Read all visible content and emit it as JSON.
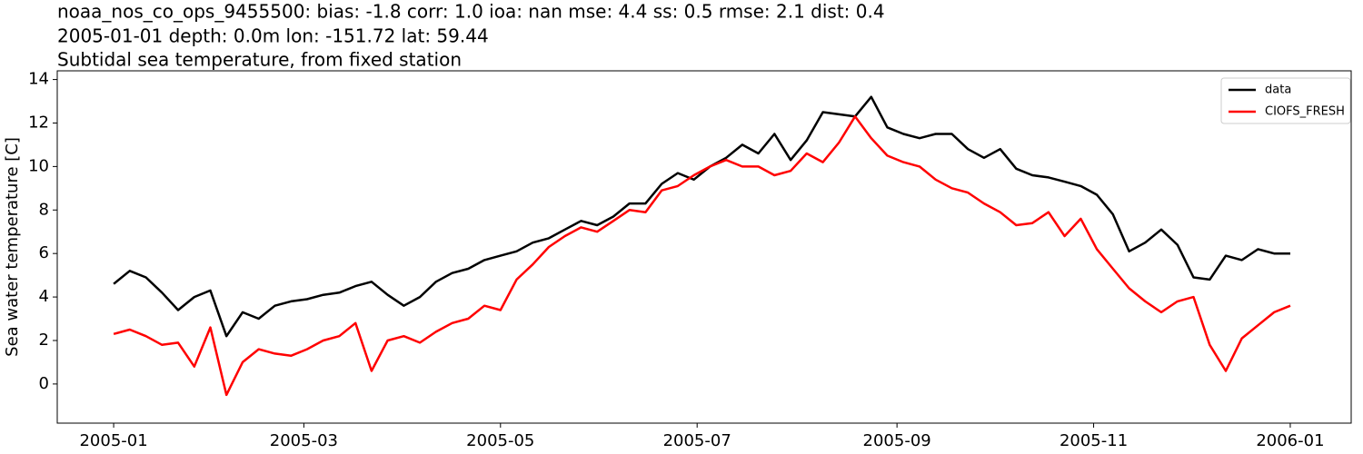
{
  "chart_data": {
    "type": "line",
    "title": "noaa_nos_co_ops_9455500: bias: -1.8  corr: 1.0  ioa: nan  mse: 4.4  ss: 0.5  rmse: 2.1  dist: 0.4",
    "subtitle": "2005-01-01 depth: 0.0m lon: -151.72 lat: 59.44",
    "description": "Subtidal sea temperature, from fixed station",
    "ylabel": "Sea water temperature [C]",
    "x": [
      0,
      5,
      10,
      15,
      20,
      25,
      30,
      35,
      40,
      45,
      50,
      55,
      60,
      65,
      70,
      75,
      80,
      85,
      90,
      95,
      100,
      105,
      110,
      115,
      120,
      125,
      130,
      135,
      140,
      145,
      150,
      155,
      160,
      165,
      170,
      175,
      180,
      185,
      190,
      195,
      200,
      205,
      210,
      215,
      220,
      225,
      230,
      235,
      240,
      245,
      250,
      255,
      260,
      265,
      270,
      275,
      280,
      285,
      290,
      295,
      300,
      305,
      310,
      315,
      320,
      325,
      330,
      335,
      340,
      345,
      350,
      355,
      360,
      365
    ],
    "series": [
      {
        "name": "data",
        "color": "#000000",
        "values": [
          4.6,
          5.2,
          4.9,
          4.2,
          3.4,
          4.0,
          4.3,
          2.2,
          3.3,
          3.0,
          3.6,
          3.8,
          3.9,
          4.1,
          4.2,
          4.5,
          4.7,
          4.1,
          3.6,
          4.0,
          4.7,
          5.1,
          5.3,
          5.7,
          5.9,
          6.1,
          6.5,
          6.7,
          7.1,
          7.5,
          7.3,
          7.7,
          8.3,
          8.3,
          9.2,
          9.7,
          9.4,
          10.0,
          10.4,
          11.0,
          10.6,
          11.5,
          10.3,
          11.2,
          12.5,
          12.4,
          12.3,
          13.2,
          11.8,
          11.5,
          11.3,
          11.5,
          11.5,
          10.8,
          10.4,
          10.8,
          9.9,
          9.6,
          9.5,
          9.3,
          9.1,
          8.7,
          7.8,
          6.1,
          6.5,
          7.1,
          6.4,
          4.9,
          4.8,
          5.9,
          5.7,
          6.2,
          6.0,
          6.0
        ]
      },
      {
        "name": "CIOFS_FRESH",
        "color": "#ff0000",
        "values": [
          2.3,
          2.5,
          2.2,
          1.8,
          1.9,
          0.8,
          2.6,
          -0.5,
          1.0,
          1.6,
          1.4,
          1.3,
          1.6,
          2.0,
          2.2,
          2.8,
          0.6,
          2.0,
          2.2,
          1.9,
          2.4,
          2.8,
          3.0,
          3.6,
          3.4,
          4.8,
          5.5,
          6.3,
          6.8,
          7.2,
          7.0,
          7.5,
          8.0,
          7.9,
          8.9,
          9.1,
          9.6,
          10.0,
          10.3,
          10.0,
          10.0,
          9.6,
          9.8,
          10.6,
          10.2,
          11.1,
          12.3,
          11.3,
          10.5,
          10.2,
          10.0,
          9.4,
          9.0,
          8.8,
          8.3,
          7.9,
          7.3,
          7.4,
          7.9,
          6.8,
          7.6,
          6.2,
          5.3,
          4.4,
          3.8,
          3.3,
          3.8,
          4.0,
          1.8,
          0.6,
          2.1,
          2.7,
          3.3,
          3.6
        ]
      }
    ],
    "xlim": [
      -17.5,
      383.9
    ],
    "xticks": [
      {
        "value": 0,
        "label": "2005-01"
      },
      {
        "value": 59,
        "label": "2005-03"
      },
      {
        "value": 120,
        "label": "2005-05"
      },
      {
        "value": 181,
        "label": "2005-07"
      },
      {
        "value": 243,
        "label": "2005-09"
      },
      {
        "value": 304,
        "label": "2005-11"
      },
      {
        "value": 365,
        "label": "2006-01"
      }
    ],
    "ylim": [
      -1.8,
      14.4
    ],
    "yticks": [
      0,
      2,
      4,
      6,
      8,
      10,
      12,
      14
    ],
    "legend": "upper right"
  }
}
